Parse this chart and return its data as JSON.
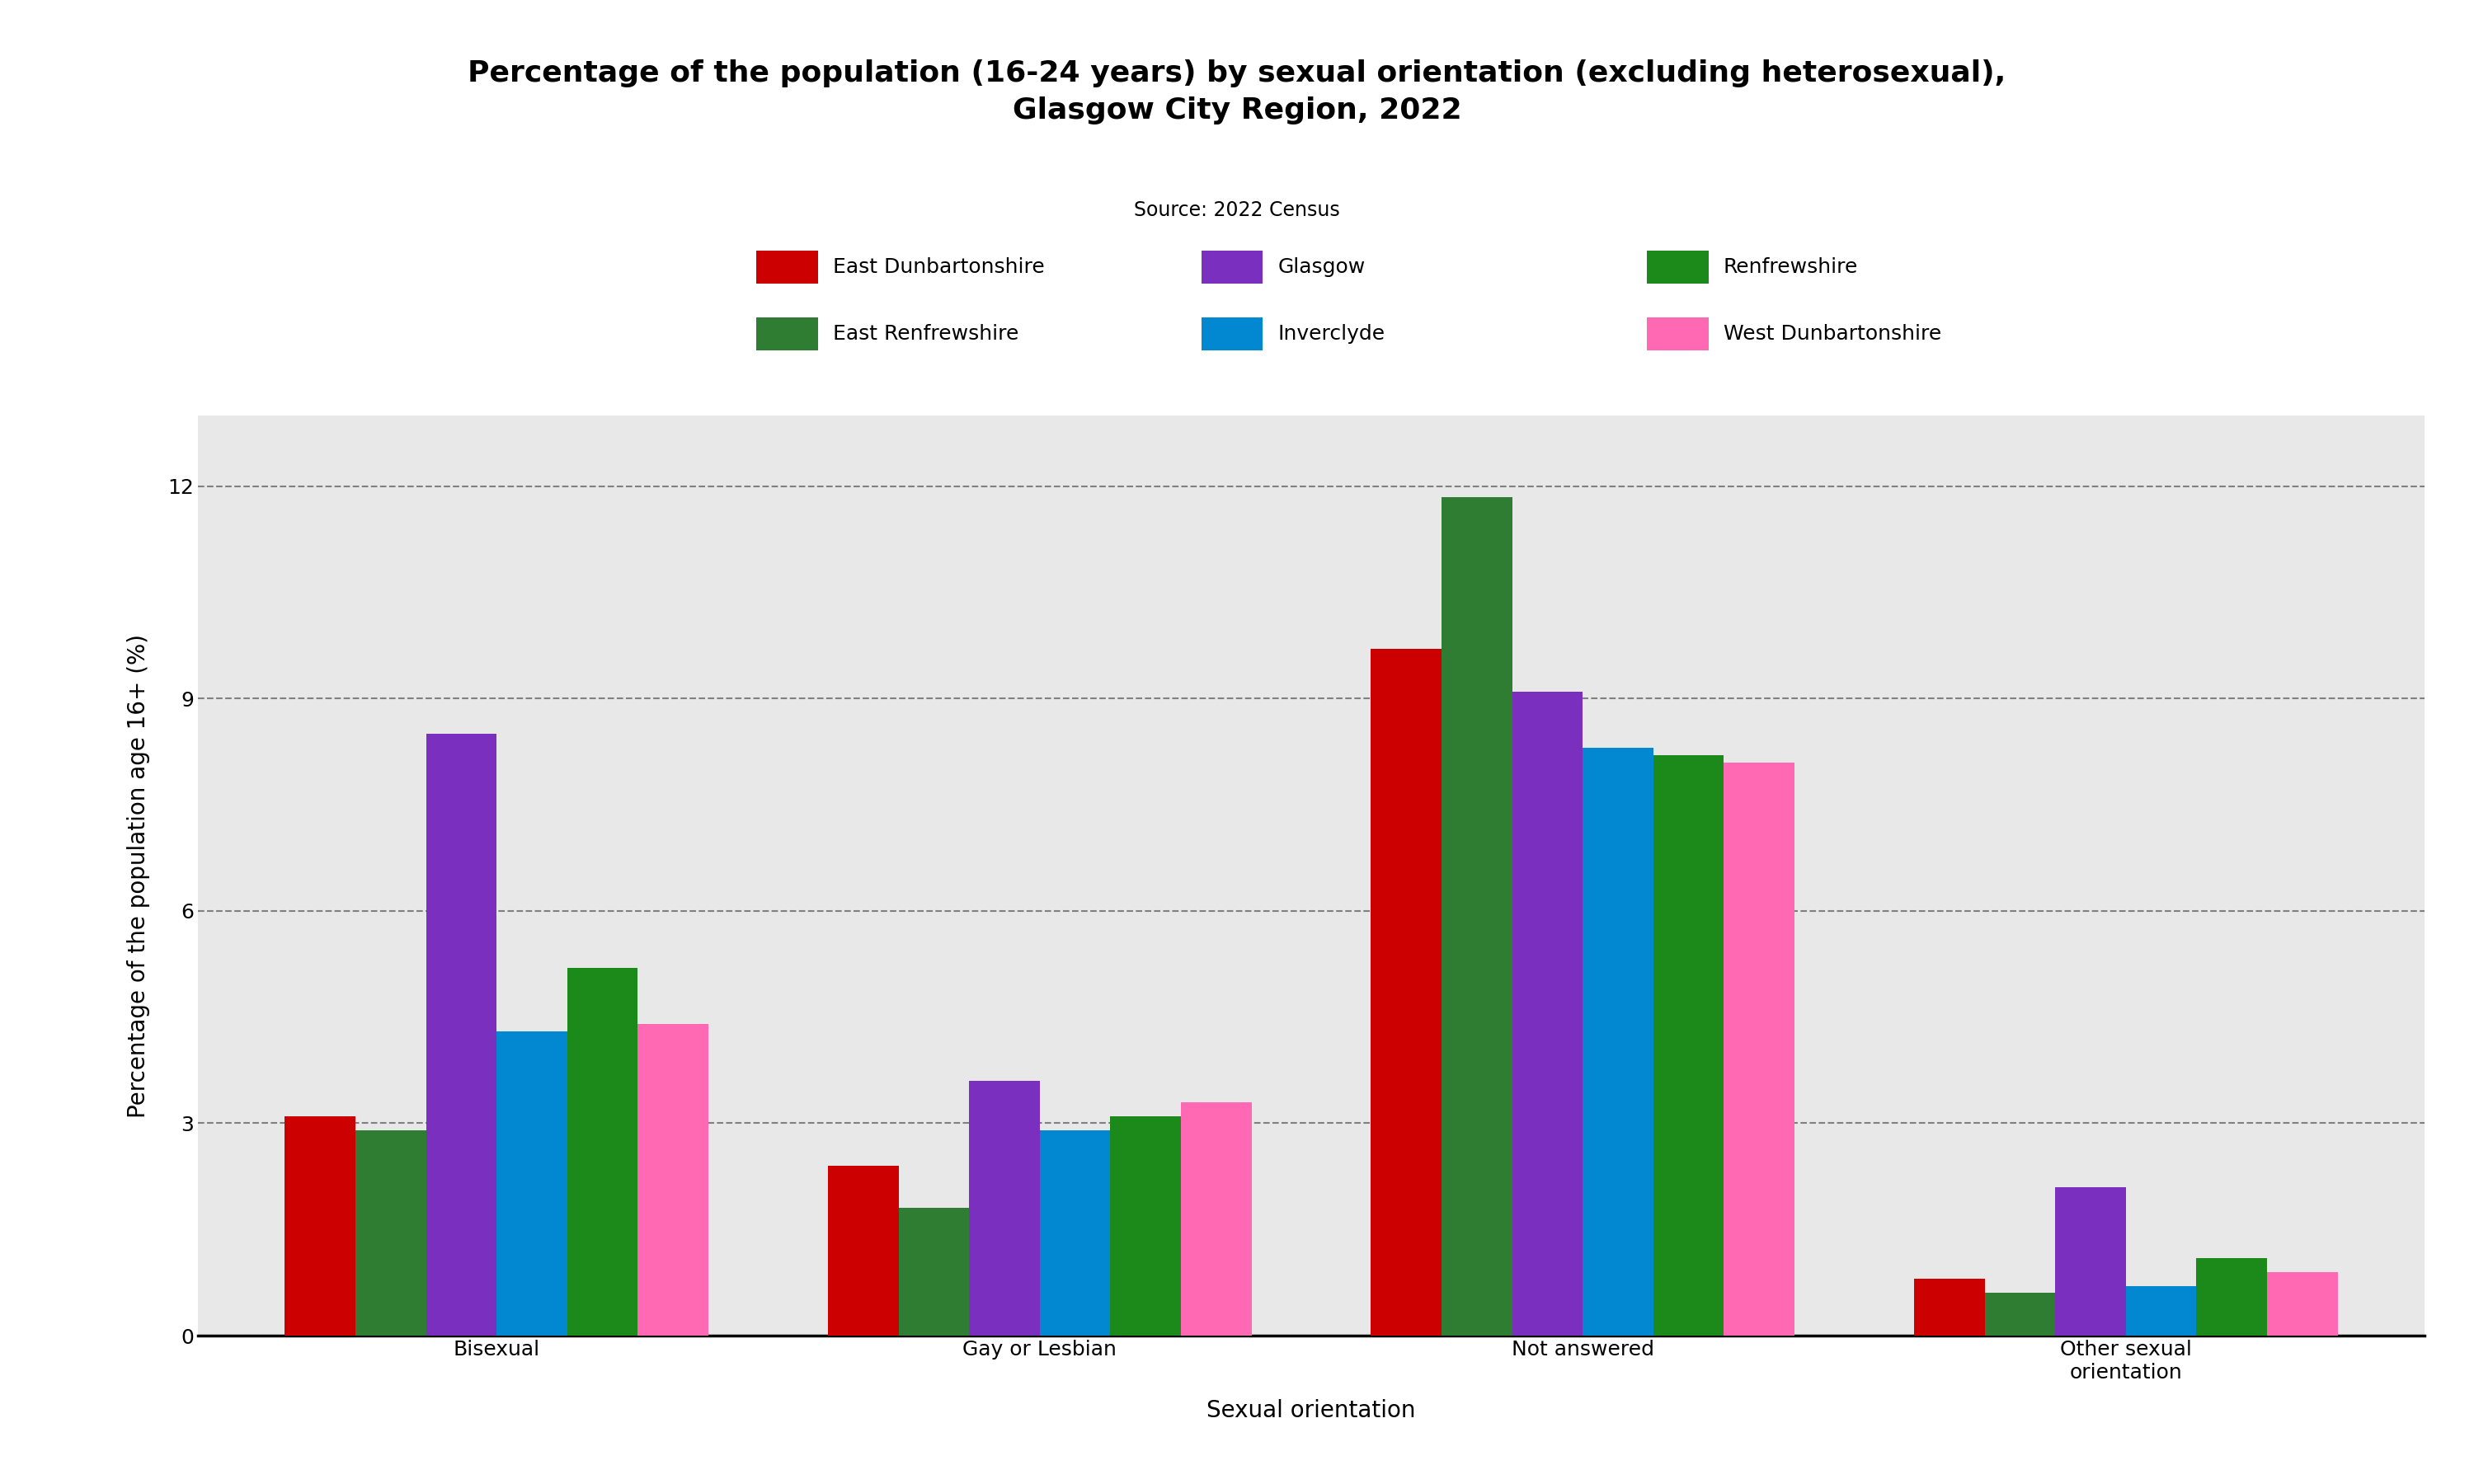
{
  "title": "Percentage of the population (16-24 years) by sexual orientation (excluding heterosexual),\nGlasgow City Region, 2022",
  "source": "Source: 2022 Census",
  "xlabel": "Sexual orientation",
  "ylabel": "Percentage of the population age 16+ (%)",
  "categories": [
    "Bisexual",
    "Gay or Lesbian",
    "Not answered",
    "Other sexual\norientation"
  ],
  "series": [
    {
      "label": "East Dunbartonshire",
      "color": "#CC0000",
      "values": [
        3.1,
        2.4,
        9.7,
        0.8
      ]
    },
    {
      "label": "East Renfrewshire",
      "color": "#2E7D32",
      "values": [
        2.9,
        1.8,
        11.85,
        0.6
      ]
    },
    {
      "label": "Glasgow",
      "color": "#7B2FBE",
      "values": [
        8.5,
        3.6,
        9.1,
        2.1
      ]
    },
    {
      "label": "Inverclyde",
      "color": "#0288D1",
      "values": [
        4.3,
        2.9,
        8.3,
        0.7
      ]
    },
    {
      "label": "Renfrewshire",
      "color": "#1B8A1B",
      "values": [
        5.2,
        3.1,
        8.2,
        1.1
      ]
    },
    {
      "label": "West Dunbartonshire",
      "color": "#FF69B4",
      "values": [
        4.4,
        3.3,
        8.1,
        0.9
      ]
    }
  ],
  "legend_row1": [
    {
      "label": "East Dunbartonshire",
      "color": "#CC0000"
    },
    {
      "label": "Glasgow",
      "color": "#7B2FBE"
    },
    {
      "label": "Renfrewshire",
      "color": "#1B8A1B"
    }
  ],
  "legend_row2": [
    {
      "label": "East Renfrewshire",
      "color": "#2E7D32"
    },
    {
      "label": "Inverclyde",
      "color": "#0288D1"
    },
    {
      "label": "West Dunbartonshire",
      "color": "#FF69B4"
    }
  ],
  "ylim": [
    0,
    13
  ],
  "yticks": [
    0,
    3,
    6,
    9,
    12
  ],
  "background_color": "#E8E8E8",
  "title_fontsize": 26,
  "source_fontsize": 17,
  "legend_fontsize": 18,
  "axis_label_fontsize": 20,
  "tick_fontsize": 18
}
